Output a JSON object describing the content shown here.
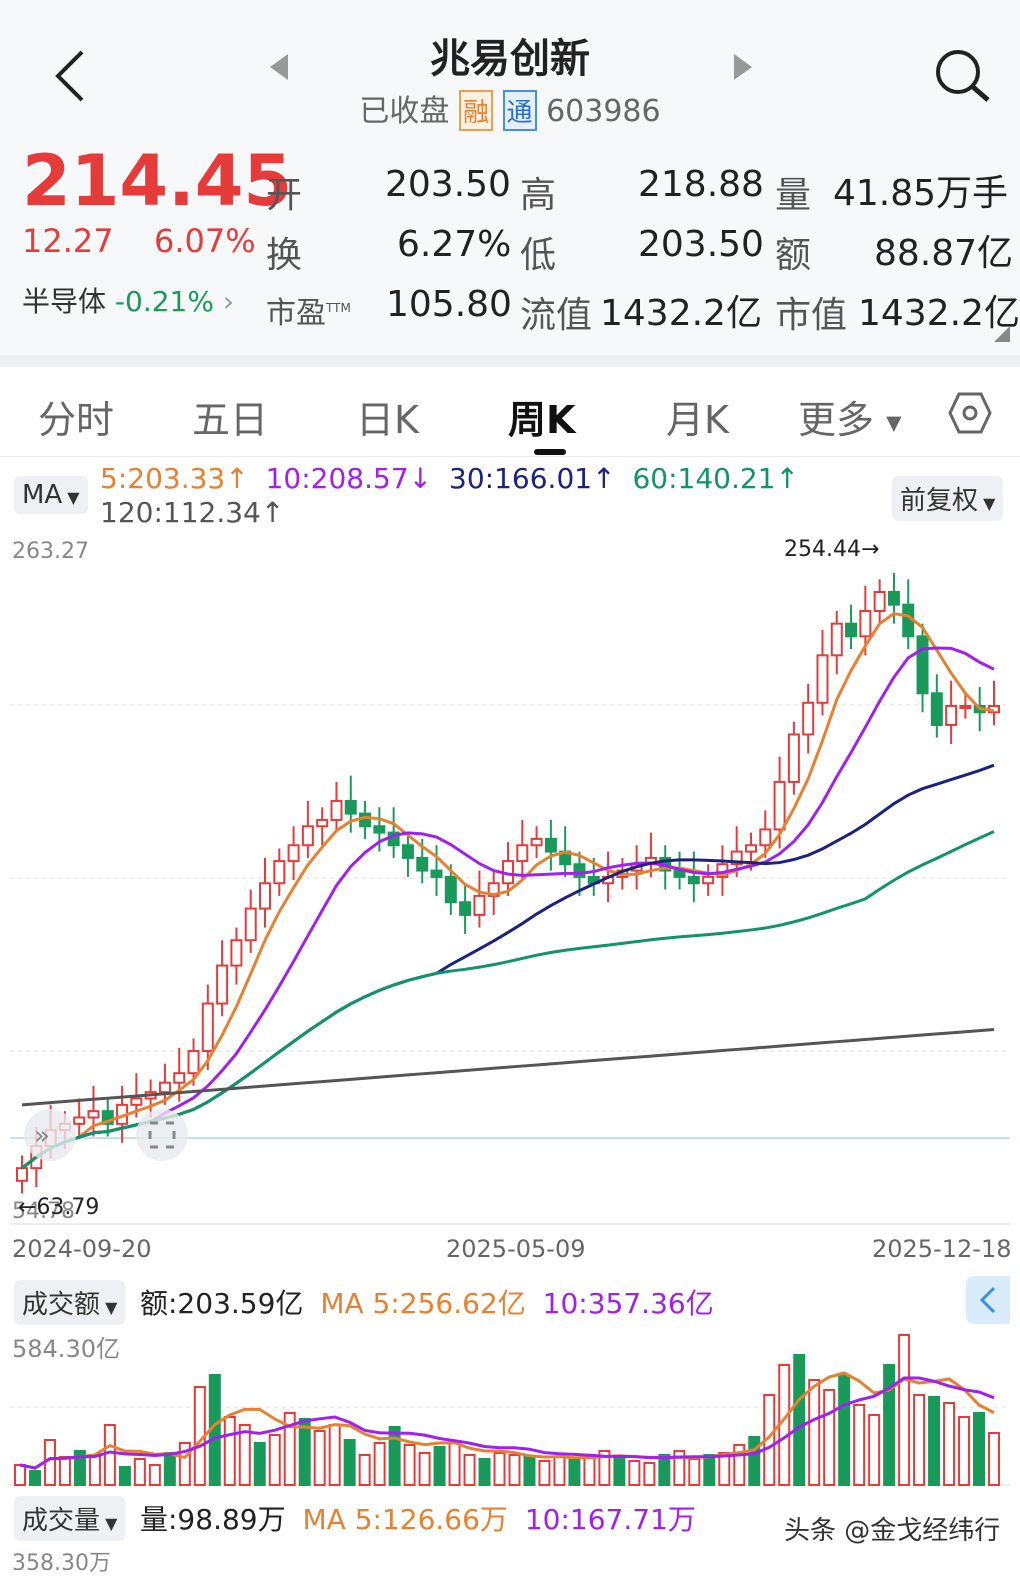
{
  "header": {
    "title": "兆易创新",
    "status": "已收盘",
    "badge_rong": "融",
    "badge_tong": "通",
    "code": "603986"
  },
  "quote": {
    "price": "214.45",
    "change": "12.27",
    "change_pct": "6.07%",
    "sector": "半导体",
    "sector_change": "-0.21%",
    "stats": [
      {
        "label": "开",
        "value": "203.50",
        "color": "red"
      },
      {
        "label": "高",
        "value": "218.88",
        "color": "red"
      },
      {
        "label": "量",
        "value": "41.85万手",
        "color": "black"
      },
      {
        "label": "换",
        "value": "6.27%",
        "color": "black"
      },
      {
        "label": "低",
        "value": "203.50",
        "color": "red"
      },
      {
        "label": "额",
        "value": "88.87亿",
        "color": "black"
      },
      {
        "label": "市盈",
        "label_sup": "TTM",
        "value": "105.80",
        "color": "black"
      },
      {
        "label": "流值",
        "value": "1432.2亿",
        "color": "black"
      },
      {
        "label": "市值",
        "value": "1432.2亿",
        "color": "black"
      }
    ]
  },
  "tabs": [
    "分时",
    "五日",
    "日K",
    "周K",
    "月K",
    "更多"
  ],
  "active_tab": "周K",
  "indicators": {
    "ma_chip": "MA",
    "fq_chip": "前复权",
    "ma5": "5:203.33",
    "ma10": "10:208.57",
    "ma30": "30:166.01",
    "ma60": "60:140.21",
    "ma120": "120:112.34",
    "ma5_arrow": "↑",
    "ma10_arrow": "↓",
    "ma30_arrow": "↑",
    "ma60_arrow": "↑",
    "ma120_arrow": "↑"
  },
  "colors": {
    "up": "#e63b3b",
    "down": "#1a9a5a",
    "ma5": "#e8812f",
    "ma10": "#a020f0",
    "ma30": "#1a237e",
    "ma60": "#11946a",
    "ma120": "#555555"
  },
  "kline": {
    "top_label": "263.27",
    "max_label": "254.44→",
    "min_label": "←63.79",
    "bottom_label": "54.78",
    "dates": [
      "2024-09-20",
      "2025-05-09",
      "2025-12-18"
    ]
  },
  "turnover": {
    "chip": "成交额",
    "value": "额:203.59亿",
    "ma5": "MA 5:256.62亿",
    "ma10": "10:357.36亿",
    "top_label": "584.30亿"
  },
  "volume": {
    "chip": "成交量",
    "value": "量:98.89万",
    "ma5": "MA 5:126.66万",
    "ma10": "10:167.71万",
    "top_label": "358.30万"
  },
  "watermark": "头条 @金戈经纬行"
}
